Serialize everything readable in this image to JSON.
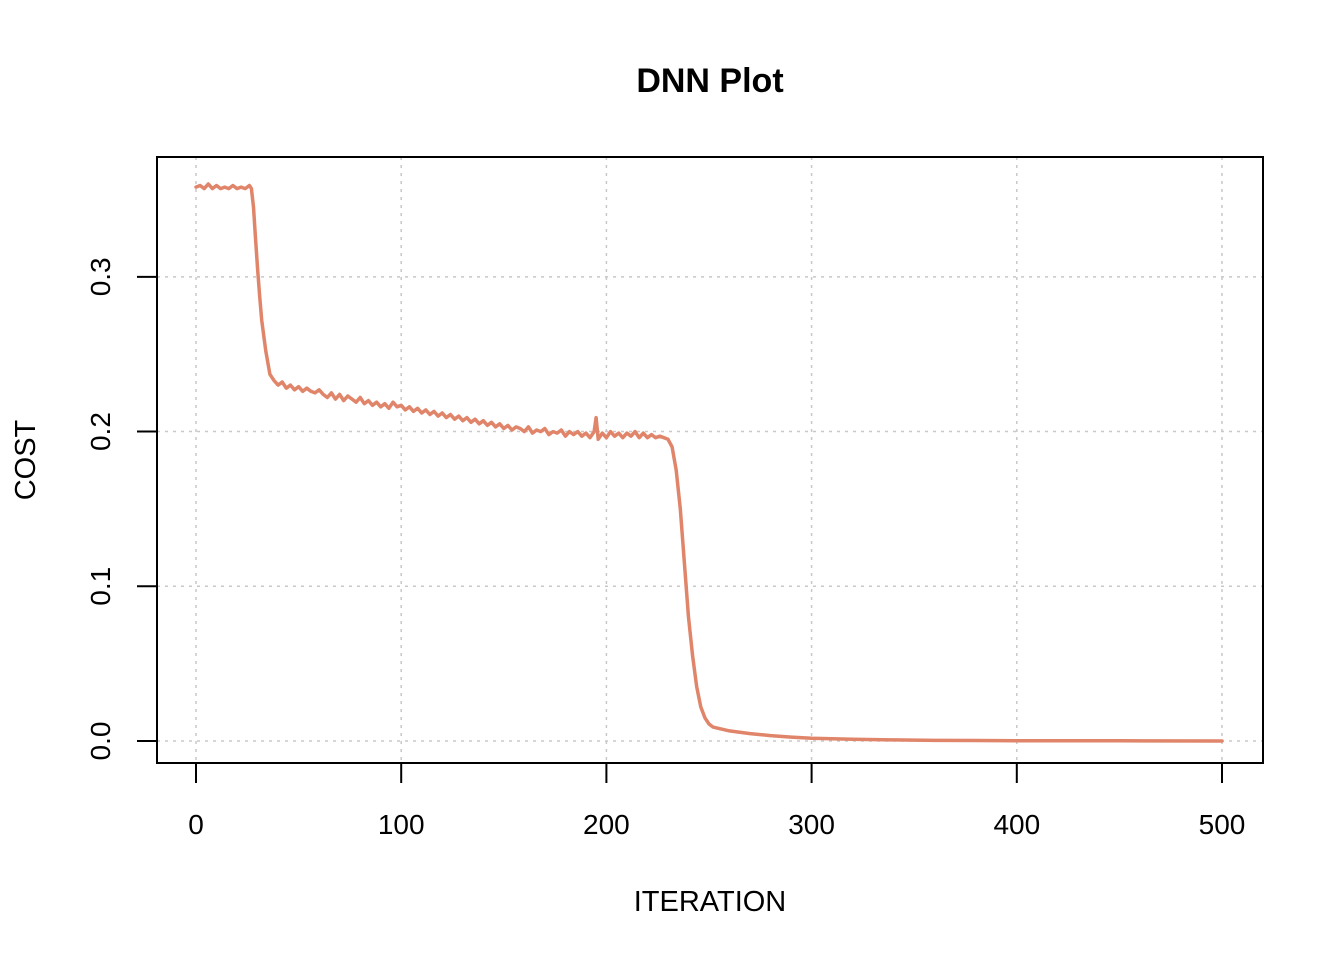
{
  "chart_data": {
    "type": "line",
    "title": "DNN Plot",
    "xlabel": "ITERATION",
    "ylabel": "COST",
    "xlim": [
      0,
      500
    ],
    "ylim": [
      0,
      0.36
    ],
    "x_ticks": [
      0,
      100,
      200,
      300,
      400,
      500
    ],
    "y_ticks": [
      0.0,
      0.1,
      0.2,
      0.3
    ],
    "x_tick_labels": [
      "0",
      "100",
      "200",
      "300",
      "400",
      "500"
    ],
    "y_tick_labels": [
      "0.0",
      "0.1",
      "0.2",
      "0.3"
    ],
    "grid": true,
    "grid_style": "dotted",
    "line_color": "#e0856a",
    "series": [
      {
        "x": [
          0,
          2,
          4,
          6,
          8,
          10,
          12,
          14,
          16,
          18,
          20,
          22,
          24,
          26,
          27,
          28,
          29,
          30,
          31,
          32,
          34,
          36,
          38,
          40,
          42,
          44,
          46,
          48,
          50,
          52,
          54,
          56,
          58,
          60,
          62,
          64,
          66,
          68,
          70,
          72,
          74,
          76,
          78,
          80,
          82,
          84,
          86,
          88,
          90,
          92,
          94,
          96,
          98,
          100,
          102,
          104,
          106,
          108,
          110,
          112,
          114,
          116,
          118,
          120,
          122,
          124,
          126,
          128,
          130,
          132,
          134,
          136,
          138,
          140,
          142,
          144,
          146,
          148,
          150,
          152,
          154,
          156,
          158,
          160,
          162,
          164,
          166,
          168,
          170,
          172,
          174,
          176,
          178,
          180,
          182,
          184,
          186,
          188,
          190,
          192,
          194,
          195,
          196,
          198,
          200,
          202,
          204,
          206,
          208,
          210,
          212,
          214,
          216,
          218,
          220,
          222,
          224,
          226,
          228,
          230,
          232,
          234,
          236,
          238,
          240,
          242,
          244,
          246,
          248,
          250,
          252,
          255,
          260,
          270,
          280,
          290,
          300,
          320,
          340,
          360,
          380,
          400,
          450,
          500
        ],
        "values": [
          0.358,
          0.359,
          0.357,
          0.36,
          0.357,
          0.359,
          0.357,
          0.358,
          0.357,
          0.359,
          0.357,
          0.358,
          0.357,
          0.359,
          0.357,
          0.345,
          0.325,
          0.305,
          0.288,
          0.272,
          0.252,
          0.237,
          0.233,
          0.23,
          0.232,
          0.228,
          0.23,
          0.227,
          0.229,
          0.226,
          0.228,
          0.226,
          0.225,
          0.227,
          0.224,
          0.222,
          0.225,
          0.221,
          0.224,
          0.22,
          0.223,
          0.221,
          0.219,
          0.222,
          0.218,
          0.22,
          0.217,
          0.219,
          0.216,
          0.218,
          0.215,
          0.219,
          0.216,
          0.217,
          0.214,
          0.216,
          0.213,
          0.215,
          0.212,
          0.214,
          0.211,
          0.213,
          0.21,
          0.212,
          0.209,
          0.211,
          0.208,
          0.21,
          0.207,
          0.209,
          0.206,
          0.208,
          0.205,
          0.207,
          0.204,
          0.206,
          0.203,
          0.205,
          0.202,
          0.204,
          0.201,
          0.203,
          0.202,
          0.2,
          0.203,
          0.199,
          0.201,
          0.2,
          0.202,
          0.198,
          0.2,
          0.199,
          0.201,
          0.197,
          0.2,
          0.198,
          0.2,
          0.197,
          0.199,
          0.196,
          0.2,
          0.209,
          0.195,
          0.199,
          0.196,
          0.2,
          0.197,
          0.199,
          0.196,
          0.199,
          0.197,
          0.2,
          0.196,
          0.199,
          0.196,
          0.198,
          0.196,
          0.197,
          0.196,
          0.195,
          0.19,
          0.175,
          0.15,
          0.115,
          0.08,
          0.055,
          0.035,
          0.022,
          0.015,
          0.011,
          0.009,
          0.008,
          0.0065,
          0.0048,
          0.0035,
          0.0025,
          0.0018,
          0.0011,
          0.0007,
          0.0004,
          0.0003,
          0.0002,
          0.0001,
          0.0
        ]
      }
    ]
  }
}
